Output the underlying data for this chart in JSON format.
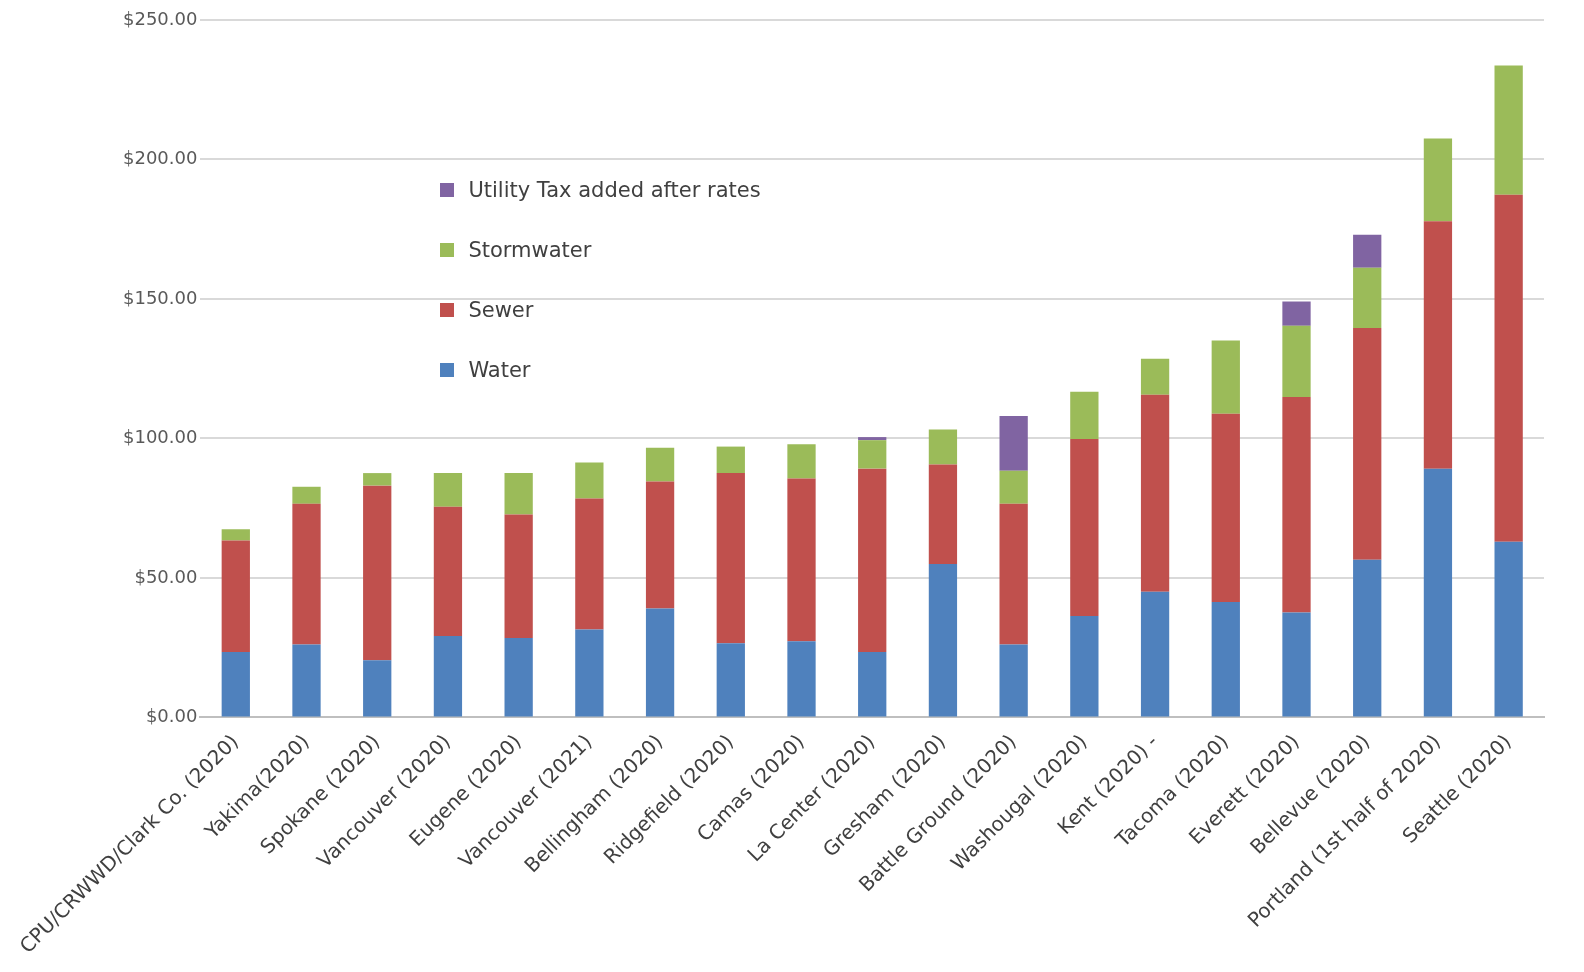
{
  "chart_data": {
    "type": "bar",
    "stacked": true,
    "categories": [
      "CPU/CRWWD/Clark Co. (2020)",
      "Yakima(2020)",
      "Spokane (2020)",
      "Vancouver (2020)",
      "Eugene (2020)",
      "Vancouver (2021)",
      "Bellingham (2020)",
      "Ridgefield (2020)",
      "Camas (2020)",
      "La Center (2020)",
      "Gresham (2020)",
      "Battle Ground (2020)",
      "Washougal (2020)",
      "Kent (2020) -",
      "Tacoma (2020)",
      "Everett (2020)",
      "Bellevue (2020)",
      "Portland (1st half of 2020)",
      "Seattle (2020)"
    ],
    "series": [
      {
        "name": "Water",
        "color": "#4f81bd",
        "values": [
          23.5,
          26.2,
          20.5,
          29.2,
          28.5,
          31.5,
          39.1,
          26.6,
          27.3,
          23.5,
          55.0,
          26.2,
          36.4,
          45.1,
          41.4,
          37.6,
          56.5,
          89.2,
          63.0
        ]
      },
      {
        "name": "Sewer",
        "color": "#c0504d",
        "values": [
          39.9,
          50.4,
          62.6,
          46.3,
          44.3,
          47.0,
          45.5,
          61.0,
          58.4,
          65.7,
          35.7,
          50.4,
          63.4,
          70.6,
          67.5,
          77.3,
          83.1,
          88.7,
          124.4
        ]
      },
      {
        "name": "Stormwater",
        "color": "#9bbb59",
        "values": [
          4.1,
          6.1,
          4.5,
          12.1,
          14.8,
          12.9,
          12.1,
          9.5,
          12.2,
          10.2,
          12.5,
          11.8,
          17.0,
          12.9,
          26.2,
          25.5,
          21.6,
          29.6,
          46.3
        ]
      },
      {
        "name": "Utility Tax added after rates",
        "color": "#8064a2",
        "values": [
          null,
          null,
          null,
          null,
          null,
          null,
          null,
          null,
          null,
          1.1,
          null,
          19.7,
          null,
          null,
          null,
          8.7,
          11.8,
          null,
          null
        ]
      }
    ],
    "ylim": [
      0,
      250
    ],
    "yticks": [
      {
        "value": 0,
        "label": "$0.00"
      },
      {
        "value": 50,
        "label": "$50.00"
      },
      {
        "value": 100,
        "label": "$100.00"
      },
      {
        "value": 150,
        "label": "$150.00"
      },
      {
        "value": 200,
        "label": "$200.00"
      },
      {
        "value": 250,
        "label": "$250.00"
      }
    ],
    "grid": "y",
    "legend": "top left"
  }
}
